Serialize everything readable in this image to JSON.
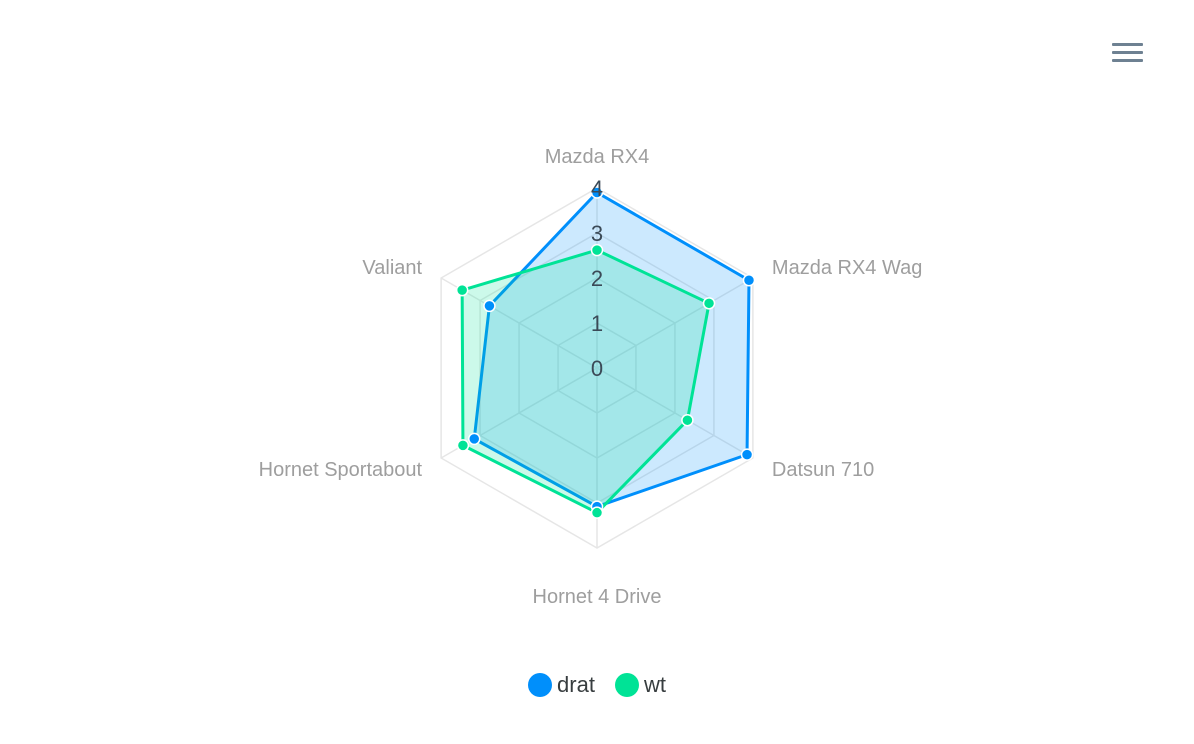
{
  "toolbar": {
    "menu_icon": "hamburger-menu-icon"
  },
  "chart_data": {
    "type": "radar",
    "categories": [
      "Mazda RX4",
      "Mazda RX4 Wag",
      "Datsun 710",
      "Hornet 4 Drive",
      "Hornet Sportabout",
      "Valiant"
    ],
    "series": [
      {
        "name": "drat",
        "values": [
          3.9,
          3.9,
          3.85,
          3.08,
          3.15,
          2.76
        ],
        "color": "#008ffb"
      },
      {
        "name": "wt",
        "values": [
          2.62,
          2.875,
          2.32,
          3.215,
          3.44,
          3.46
        ],
        "color": "#00e396"
      }
    ],
    "yticks": [
      "0",
      "1",
      "2",
      "3",
      "4"
    ],
    "ylim": [
      0,
      4
    ],
    "legend_position": "bottom",
    "grid": true
  }
}
